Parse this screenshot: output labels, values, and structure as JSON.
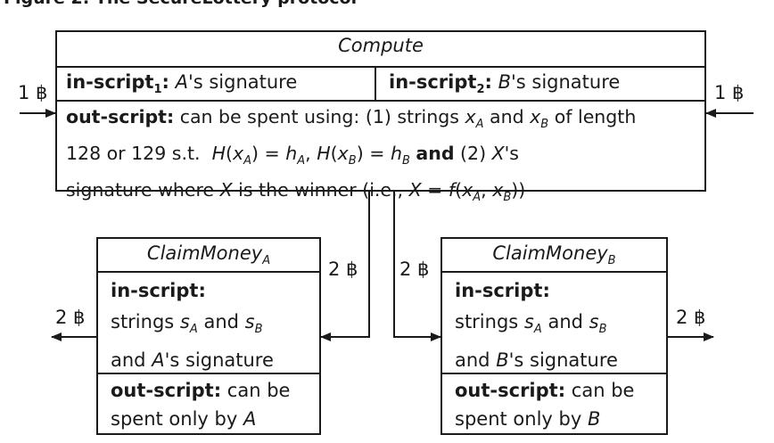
{
  "figure": {
    "title": "Figure 2: The SecureLottery protocol"
  },
  "compute": {
    "title": "Compute",
    "in_script_1": {
      "label": "in-script",
      "sub": "1",
      "colon": ":",
      "signer": "A",
      "rest": "'s signature"
    },
    "in_script_2": {
      "label": "in-script",
      "sub": "2",
      "colon": ":",
      "signer": "B",
      "rest": "'s signature"
    },
    "out_script": {
      "label": "out-script:",
      "line1_text": "can be spent using: (1) strings",
      "line1_xa": "x",
      "line1_xa_sub": "A",
      "line1_and": "and",
      "line1_xb": "x",
      "line1_xb_sub": "B",
      "line1_tail": "of length",
      "line2_a": "128 or 129 s.t.",
      "line2_ha": "H",
      "line2_xa": "x",
      "line2_xa_sub": "A",
      "line2_eq1": ") = ",
      "line2_h": "h",
      "line2_h_sub": "A",
      "line2_comma": ",",
      "line2_hb": "H",
      "line2_xb": "x",
      "line2_xb_sub": "B",
      "line2_eq2": ") = ",
      "line2_h2": "h",
      "line2_h2_sub": "B",
      "line2_and": "and",
      "line2_two": "(2)",
      "line2_X": "X",
      "line2_s": "'s",
      "line3_a": "signature where",
      "line3_X": "X",
      "line3_b": "is the winner (i.e.,",
      "line3_X2": "X",
      "line3_eq": " = ",
      "line3_f": "f",
      "line3_xa": "x",
      "line3_xa_sub": "A",
      "line3_comma": ",",
      "line3_xb": "x",
      "line3_xb_sub": "B",
      "line3_end": "))"
    }
  },
  "claim_a": {
    "title": "ClaimMoney",
    "title_sub": "A",
    "in_label": "in-script:",
    "in_line1_a": "strings",
    "in_line1_s": "s",
    "in_line1_s_sub": "A",
    "in_line1_and": "and",
    "in_line1_s2": "s",
    "in_line1_s2_sub": "B",
    "in_line2_a": "and",
    "in_line2_who": "A",
    "in_line2_rest": "'s signature",
    "out_label": "out-script:",
    "out_line1": "can be",
    "out_line2_a": "spent only by",
    "out_line2_who": "A"
  },
  "claim_b": {
    "title": "ClaimMoney",
    "title_sub": "B",
    "in_label": "in-script:",
    "in_line1_a": "strings",
    "in_line1_s": "s",
    "in_line1_s_sub": "A",
    "in_line1_and": "and",
    "in_line1_s2": "s",
    "in_line1_s2_sub": "B",
    "in_line2_a": "and",
    "in_line2_who": "B",
    "in_line2_rest": "'s signature",
    "out_label": "out-script:",
    "out_line1": "can be",
    "out_line2_a": "spent only by",
    "out_line2_who": "B"
  },
  "flows": {
    "in_left": "1 ฿",
    "in_right": "1 ฿",
    "to_claim_a": "2 ฿",
    "to_claim_b": "2 ฿",
    "out_claim_a": "2 ฿",
    "out_claim_b": "2 ฿"
  }
}
